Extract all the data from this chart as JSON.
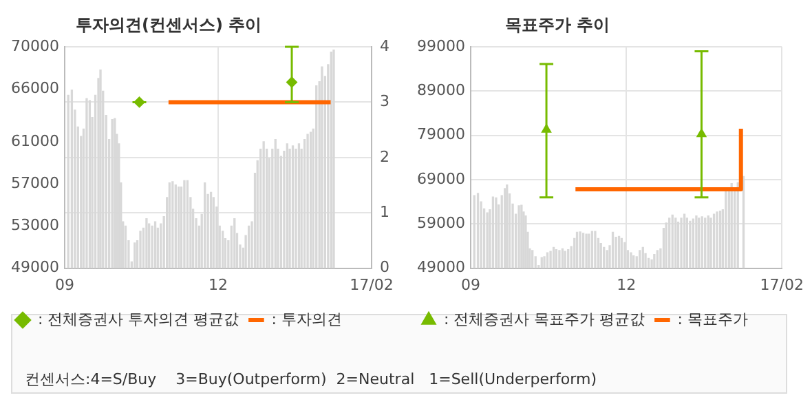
{
  "chart_data": [
    {
      "type": "bar",
      "title": "투자의견(컨센서스) 추이",
      "series": [
        {
          "color": "#d8d8d8",
          "x": [
            9.07,
            9.14,
            9.2,
            9.26,
            9.32,
            9.37,
            9.43,
            9.49,
            9.54,
            9.6,
            9.66,
            9.7,
            9.75,
            9.81,
            9.87,
            9.93,
            9.98,
            10.02,
            10.06,
            10.1,
            10.14,
            10.19,
            10.25,
            10.31,
            10.37,
            10.42,
            10.48,
            10.54,
            10.6,
            10.65,
            10.71,
            10.77,
            10.82,
            10.88,
            10.94,
            11.0,
            11.05,
            11.11,
            11.17,
            11.23,
            11.28,
            11.34,
            11.4,
            11.46,
            11.51,
            11.57,
            11.63,
            11.68,
            11.74,
            11.8,
            11.86,
            11.91,
            11.97,
            12.03,
            12.09,
            12.14,
            12.2,
            12.26,
            12.32,
            12.37,
            12.43,
            12.49,
            12.54,
            12.6,
            12.66,
            12.72,
            12.77,
            12.83,
            12.89,
            12.95,
            13.0,
            13.06,
            13.12,
            13.17,
            13.23,
            13.29,
            13.35,
            13.4,
            13.46,
            13.52,
            13.58,
            13.63,
            13.69,
            13.75,
            13.81,
            13.86,
            13.92,
            13.98,
            14.03,
            14.09,
            14.15,
            14.21,
            14.26
          ],
          "values": [
            65400,
            65900,
            64000,
            62400,
            61500,
            62200,
            65100,
            64900,
            63300,
            65400,
            67000,
            67800,
            65800,
            63500,
            61200,
            63100,
            63200,
            61700,
            60800,
            57100,
            53400,
            53000,
            51600,
            49600,
            51400,
            51600,
            52500,
            52800,
            53700,
            53200,
            53000,
            53400,
            52800,
            53200,
            53900,
            55700,
            57100,
            57200,
            56900,
            56700,
            56700,
            57300,
            57300,
            55700,
            54600,
            53700,
            53000,
            54100,
            57100,
            56000,
            56200,
            55700,
            54800,
            53000,
            52500,
            51800,
            51600,
            53000,
            53700,
            52300,
            51200,
            50900,
            52100,
            53000,
            53400,
            58000,
            59200,
            60300,
            61000,
            60300,
            59400,
            60300,
            61200,
            60300,
            59600,
            60100,
            60800,
            60300,
            60600,
            60300,
            60800,
            60300,
            61200,
            61700,
            61900,
            62200,
            66300,
            66700,
            68100,
            67200,
            68300,
            69500,
            69700
          ]
        },
        {
          "type": "line",
          "name": ": 투자의견",
          "color": "#ff6600",
          "axis": "y2",
          "x": [
            11.03,
            14.2
          ],
          "values": [
            3,
            3
          ]
        },
        {
          "type": "scatter",
          "name": ": 전체증권사 투자의견 평균값",
          "color": "#77bb00",
          "marker": "diamond",
          "axis": "y2",
          "x": [
            10.46,
            13.44
          ],
          "values": [
            3,
            3.36
          ],
          "errors": [
            [
              3,
              3
            ],
            [
              3,
              4
            ]
          ]
        }
      ],
      "xlim": [
        9,
        15
      ],
      "xticks": [
        {
          "value": 9,
          "label": "09"
        },
        {
          "value": 12,
          "label": "12"
        },
        {
          "value": 15,
          "label": "17/02"
        }
      ],
      "ylim": [
        49000,
        70000
      ],
      "yticks": [
        49000,
        53000,
        57000,
        61000,
        66000,
        70000
      ],
      "y2lim": [
        0,
        4
      ],
      "y2ticks": [
        0,
        1,
        2,
        3,
        4
      ],
      "grid": true,
      "legend": "bottom",
      "annotations": [
        "컨센서스:4=S/Buy    3=Buy(Outperform)  2=Neutral   1=Sell(Underperform)"
      ]
    },
    {
      "type": "bar",
      "title": "목표주가 추이",
      "series": [
        {
          "color": "#d8d8d8",
          "x": [
            9.07,
            9.14,
            9.2,
            9.26,
            9.32,
            9.37,
            9.43,
            9.49,
            9.54,
            9.6,
            9.66,
            9.7,
            9.75,
            9.81,
            9.87,
            9.93,
            9.98,
            10.02,
            10.06,
            10.1,
            10.14,
            10.19,
            10.25,
            10.31,
            10.37,
            10.42,
            10.48,
            10.54,
            10.6,
            10.65,
            10.71,
            10.77,
            10.82,
            10.88,
            10.94,
            11.0,
            11.05,
            11.11,
            11.17,
            11.23,
            11.28,
            11.34,
            11.4,
            11.46,
            11.51,
            11.57,
            11.63,
            11.68,
            11.74,
            11.8,
            11.86,
            11.91,
            11.97,
            12.03,
            12.09,
            12.14,
            12.2,
            12.26,
            12.32,
            12.37,
            12.43,
            12.49,
            12.54,
            12.6,
            12.66,
            12.72,
            12.77,
            12.83,
            12.89,
            12.95,
            13.0,
            13.06,
            13.12,
            13.17,
            13.23,
            13.29,
            13.35,
            13.4,
            13.46,
            13.52,
            13.58,
            13.63,
            13.69,
            13.75,
            13.81,
            13.86,
            13.92,
            13.98,
            14.03,
            14.09,
            14.15,
            14.21,
            14.26
          ],
          "values": [
            65400,
            65900,
            64000,
            62400,
            61500,
            62200,
            65100,
            64900,
            63300,
            65400,
            67000,
            67800,
            65800,
            63500,
            61200,
            63100,
            63200,
            61700,
            60800,
            57100,
            53400,
            53000,
            51600,
            49600,
            51400,
            51600,
            52500,
            52800,
            53700,
            53200,
            53000,
            53400,
            52800,
            53200,
            53900,
            55700,
            57100,
            57200,
            56900,
            56700,
            56700,
            57300,
            57300,
            55700,
            54600,
            53700,
            53000,
            54100,
            57100,
            56000,
            56200,
            55700,
            54800,
            53000,
            52500,
            51800,
            51600,
            53000,
            53700,
            52300,
            51200,
            50900,
            52100,
            53000,
            53400,
            58000,
            59200,
            60300,
            61000,
            60300,
            59400,
            60300,
            61200,
            60300,
            59600,
            60100,
            60800,
            60300,
            60600,
            60300,
            60800,
            60300,
            61200,
            61700,
            61900,
            62200,
            66300,
            66700,
            68100,
            67200,
            68300,
            null,
            69700
          ]
        },
        {
          "type": "line",
          "name": ": 목표주가",
          "color": "#ff6600",
          "x": [
            11.02,
            14.21,
            14.21
          ],
          "values": [
            66800,
            66800,
            80500
          ]
        },
        {
          "type": "scatter",
          "name": ": 전체증권사 목표주가 평균값",
          "color": "#77bb00",
          "marker": "triangle",
          "x": [
            10.46,
            13.45
          ],
          "values": [
            80300,
            79300
          ],
          "errors": [
            [
              65000,
              95100
            ],
            [
              65000,
              98000
            ]
          ]
        }
      ],
      "xlim": [
        9,
        15
      ],
      "xticks": [
        {
          "value": 9,
          "label": "09"
        },
        {
          "value": 12,
          "label": "12"
        },
        {
          "value": 15,
          "label": "17/02"
        }
      ],
      "ylim": [
        49000,
        99000
      ],
      "yticks": [
        49000,
        59000,
        69000,
        79000,
        89000,
        99000
      ],
      "grid": true,
      "legend": "bottom"
    }
  ]
}
